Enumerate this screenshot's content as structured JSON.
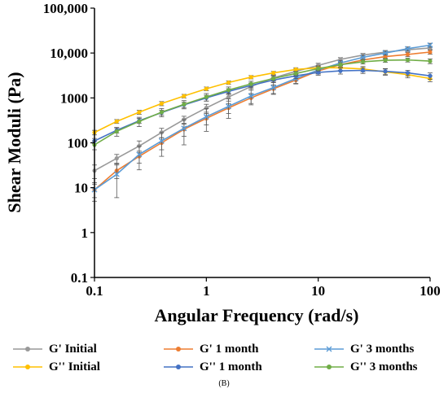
{
  "chart_data": {
    "type": "line",
    "xlabel": "Angular Frequency (rad/s)",
    "ylabel": "Shear Moduli (Pa)",
    "x_scale": "log",
    "y_scale": "log",
    "xlim": [
      0.1,
      100
    ],
    "ylim": [
      0.1,
      100000
    ],
    "x_ticks": [
      {
        "value": 0.1,
        "label": "0.1"
      },
      {
        "value": 1,
        "label": "1"
      },
      {
        "value": 10,
        "label": "10"
      },
      {
        "value": 100,
        "label": "100"
      }
    ],
    "y_ticks": [
      {
        "value": 0.1,
        "label": "0.1"
      },
      {
        "value": 1,
        "label": "1"
      },
      {
        "value": 10,
        "label": "10"
      },
      {
        "value": 100,
        "label": "100"
      },
      {
        "value": 1000,
        "label": "1000"
      },
      {
        "value": 10000,
        "label": "10,000"
      },
      {
        "value": 100000,
        "label": "100,000"
      }
    ],
    "grid": false,
    "legend_position": "bottom",
    "x": [
      0.1,
      0.158,
      0.251,
      0.398,
      0.631,
      1,
      1.58,
      2.51,
      3.98,
      6.31,
      10,
      15.8,
      25.1,
      39.8,
      63.1,
      100
    ],
    "series": [
      {
        "name": "G' Initial",
        "color": "#999999",
        "marker": "circle",
        "values": [
          24,
          45,
          85,
          170,
          330,
          600,
          1050,
          1800,
          2800,
          3900,
          5300,
          7200,
          9000,
          10500,
          11800,
          13000
        ]
      },
      {
        "name": "G' 1 month",
        "color": "#ED7D31",
        "marker": "circle",
        "values": [
          9,
          24,
          50,
          100,
          200,
          350,
          600,
          1000,
          1600,
          2500,
          4000,
          5500,
          7000,
          8300,
          9300,
          10500
        ]
      },
      {
        "name": "G' 3 months",
        "color": "#5B9BD5",
        "marker": "cross",
        "values": [
          9,
          20,
          55,
          110,
          210,
          380,
          650,
          1100,
          1700,
          2700,
          4200,
          6000,
          8000,
          10000,
          12500,
          15000
        ]
      },
      {
        "name": "G'' Initial",
        "color": "#FFC000",
        "marker": "circle",
        "values": [
          170,
          300,
          480,
          750,
          1100,
          1600,
          2200,
          2900,
          3600,
          4300,
          4700,
          4700,
          4400,
          3800,
          3300,
          2700
        ]
      },
      {
        "name": "G'' 1 month",
        "color": "#4472C4",
        "marker": "circle",
        "values": [
          110,
          190,
          310,
          470,
          700,
          1000,
          1400,
          1900,
          2500,
          3100,
          3700,
          4000,
          4100,
          3900,
          3600,
          3100
        ]
      },
      {
        "name": "G'' 3 months",
        "color": "#70AD47",
        "marker": "circle",
        "values": [
          90,
          180,
          300,
          480,
          720,
          1050,
          1500,
          2050,
          2700,
          3500,
          4500,
          5500,
          6400,
          6900,
          7000,
          6600
        ]
      }
    ],
    "error_bars": {
      "G' Initial": [
        8,
        10,
        25,
        40,
        60,
        120,
        200,
        300,
        400,
        500,
        600,
        700,
        800,
        900,
        1000,
        1100
      ],
      "G' 1 month": [
        3,
        8,
        15,
        30,
        60,
        100,
        150,
        250,
        350,
        450,
        600,
        700,
        800,
        900,
        1000,
        1100
      ],
      "G' 3 months": [
        4,
        14,
        30,
        60,
        120,
        200,
        300,
        400,
        500,
        600,
        700,
        800,
        900,
        1000,
        1200,
        1500
      ],
      "G'' Initial": [
        20,
        30,
        50,
        80,
        100,
        150,
        200,
        250,
        300,
        400,
        500,
        600,
        600,
        600,
        500,
        400
      ],
      "G'' 1 month": [
        15,
        25,
        40,
        60,
        100,
        150,
        200,
        250,
        300,
        400,
        500,
        600,
        600,
        600,
        500,
        500
      ],
      "G'' 3 months": [
        20,
        40,
        70,
        100,
        150,
        200,
        250,
        300,
        350,
        400,
        500,
        600,
        700,
        700,
        700,
        800
      ]
    }
  },
  "legend": {
    "rows": [
      [
        "G' Initial",
        "G' 1 month",
        "G' 3 months"
      ],
      [
        "G'' Initial",
        "G'' 1 month",
        "G'' 3 months"
      ]
    ]
  },
  "caption": "(B)"
}
